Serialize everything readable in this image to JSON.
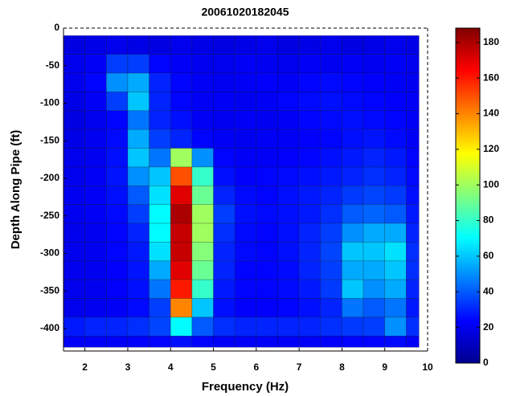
{
  "chart_data": {
    "type": "heatmap",
    "title": "20061020182045",
    "x_label": "Frequency (Hz)",
    "y_label": "Depth Along Pipe (ft)",
    "xlim": [
      1.5,
      10
    ],
    "xticks": [
      2,
      3,
      4,
      5,
      6,
      7,
      8,
      9,
      10
    ],
    "ylim": [
      -430,
      0
    ],
    "yticks": [
      0,
      -50,
      -100,
      -150,
      -200,
      -250,
      -300,
      -350,
      -400
    ],
    "colormap": "jet",
    "clim": [
      0,
      188
    ],
    "cticks": [
      0,
      20,
      40,
      60,
      80,
      100,
      120,
      140,
      160,
      180
    ],
    "xbins": [
      1.5,
      2,
      2.5,
      3,
      3.5,
      4,
      4.5,
      5,
      5.5,
      6,
      6.5,
      7,
      7.5,
      8,
      8.5,
      9,
      9.5,
      9.8
    ],
    "ybins": [
      -10,
      -35,
      -60,
      -85,
      -110,
      -135,
      -160,
      -185,
      -210,
      -235,
      -260,
      -285,
      -310,
      -335,
      -360,
      -385,
      -410,
      -425
    ],
    "z": [
      [
        18,
        19,
        20,
        19,
        18,
        20,
        19,
        18,
        19,
        20,
        18,
        19,
        20,
        18,
        19,
        20,
        19
      ],
      [
        20,
        22,
        35,
        35,
        24,
        22,
        21,
        20,
        22,
        21,
        20,
        22,
        21,
        22,
        21,
        22,
        20
      ],
      [
        20,
        24,
        50,
        55,
        30,
        24,
        22,
        21,
        22,
        23,
        22,
        24,
        25,
        24,
        23,
        22,
        21
      ],
      [
        19,
        22,
        35,
        60,
        30,
        24,
        22,
        22,
        21,
        22,
        24,
        25,
        26,
        25,
        24,
        23,
        22
      ],
      [
        18,
        20,
        24,
        45,
        30,
        26,
        22,
        21,
        22,
        21,
        22,
        24,
        25,
        26,
        25,
        24,
        22
      ],
      [
        19,
        21,
        25,
        55,
        35,
        30,
        24,
        22,
        21,
        22,
        22,
        23,
        24,
        26,
        27,
        25,
        22
      ],
      [
        20,
        21,
        26,
        60,
        45,
        100,
        50,
        24,
        22,
        22,
        23,
        24,
        26,
        28,
        30,
        28,
        24
      ],
      [
        20,
        22,
        27,
        50,
        60,
        150,
        80,
        26,
        23,
        24,
        25,
        26,
        28,
        30,
        32,
        30,
        25
      ],
      [
        21,
        22,
        26,
        40,
        65,
        170,
        90,
        30,
        25,
        24,
        26,
        28,
        30,
        34,
        36,
        34,
        26
      ],
      [
        21,
        22,
        25,
        35,
        70,
        180,
        100,
        35,
        26,
        25,
        26,
        28,
        32,
        40,
        42,
        40,
        28
      ],
      [
        20,
        21,
        24,
        30,
        70,
        175,
        100,
        32,
        25,
        24,
        26,
        30,
        35,
        50,
        55,
        55,
        30
      ],
      [
        20,
        21,
        24,
        28,
        65,
        175,
        95,
        30,
        25,
        24,
        26,
        30,
        36,
        60,
        60,
        65,
        32
      ],
      [
        20,
        21,
        23,
        27,
        55,
        170,
        90,
        30,
        24,
        24,
        25,
        30,
        35,
        55,
        55,
        60,
        32
      ],
      [
        20,
        21,
        23,
        26,
        45,
        160,
        80,
        28,
        24,
        24,
        25,
        28,
        34,
        60,
        50,
        55,
        30
      ],
      [
        20,
        21,
        22,
        25,
        35,
        140,
        60,
        26,
        23,
        23,
        24,
        26,
        30,
        45,
        40,
        45,
        28
      ],
      [
        28,
        30,
        30,
        32,
        36,
        70,
        40,
        32,
        30,
        30,
        30,
        30,
        32,
        34,
        35,
        50,
        32
      ],
      [
        22,
        22,
        22,
        23,
        24,
        26,
        24,
        22,
        22,
        22,
        22,
        22,
        23,
        24,
        24,
        25,
        22
      ]
    ]
  }
}
